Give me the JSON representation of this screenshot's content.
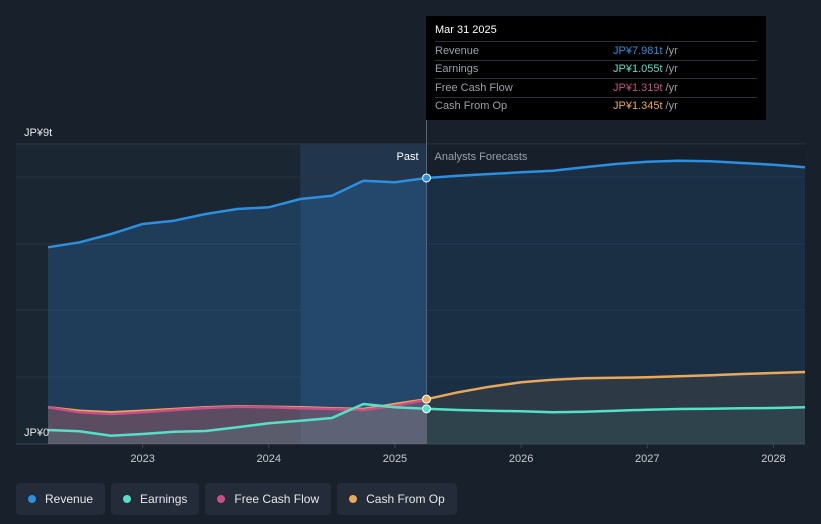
{
  "chart_data": {
    "type": "area",
    "y_top_label": "JP¥9t",
    "y_bottom_label": "JP¥0",
    "ylim": [
      0,
      9
    ],
    "xlim": [
      2022.25,
      2028.25
    ],
    "x_ticks": [
      "2023",
      "2024",
      "2025",
      "2026",
      "2027",
      "2028"
    ],
    "x_tick_values": [
      2023,
      2024,
      2025,
      2026,
      2027,
      2028
    ],
    "past_label": "Past",
    "forecast_label": "Analysts Forecasts",
    "divider_x": 2025.25,
    "highlight_start": 2024.25,
    "series": [
      {
        "name": "Revenue",
        "color": "#2c8fe0",
        "x": [
          2022.25,
          2022.5,
          2022.75,
          2023.0,
          2023.25,
          2023.5,
          2023.75,
          2024.0,
          2024.25,
          2024.5,
          2024.75,
          2025.0,
          2025.25,
          2025.5,
          2025.75,
          2026.0,
          2026.25,
          2026.5,
          2026.75,
          2027.0,
          2027.25,
          2027.5,
          2027.75,
          2028.0,
          2028.25
        ],
        "y": [
          5.9,
          6.05,
          6.3,
          6.6,
          6.7,
          6.9,
          7.05,
          7.1,
          7.35,
          7.45,
          7.9,
          7.85,
          7.981,
          8.05,
          8.1,
          8.15,
          8.2,
          8.3,
          8.4,
          8.47,
          8.5,
          8.48,
          8.43,
          8.38,
          8.3
        ]
      },
      {
        "name": "Earnings",
        "color": "#55e0c8",
        "x": [
          2022.25,
          2022.5,
          2022.75,
          2023.0,
          2023.25,
          2023.5,
          2023.75,
          2024.0,
          2024.25,
          2024.5,
          2024.6,
          2024.75,
          2025.0,
          2025.25,
          2025.5,
          2025.75,
          2026.0,
          2026.25,
          2026.5,
          2026.75,
          2027.0,
          2027.25,
          2027.5,
          2027.75,
          2028.0,
          2028.25
        ],
        "y": [
          0.42,
          0.38,
          0.25,
          0.3,
          0.37,
          0.39,
          0.5,
          0.62,
          0.7,
          0.78,
          0.95,
          1.2,
          1.1,
          1.055,
          1.02,
          1.0,
          0.98,
          0.95,
          0.97,
          1.0,
          1.03,
          1.05,
          1.06,
          1.07,
          1.08,
          1.1
        ]
      },
      {
        "name": "Free Cash Flow",
        "color": "#c94f86",
        "x": [
          2022.25,
          2022.5,
          2022.75,
          2023.0,
          2023.25,
          2023.5,
          2023.75,
          2024.0,
          2024.25,
          2024.5,
          2024.75,
          2025.0,
          2025.25
        ],
        "y": [
          1.1,
          0.95,
          0.9,
          0.95,
          1.02,
          1.08,
          1.12,
          1.1,
          1.07,
          1.05,
          1.02,
          1.15,
          1.319
        ]
      },
      {
        "name": "Cash From Op",
        "color": "#e8a95b",
        "x": [
          2022.25,
          2022.5,
          2022.75,
          2023.0,
          2023.25,
          2023.5,
          2023.75,
          2024.0,
          2024.25,
          2024.5,
          2024.75,
          2025.0,
          2025.25,
          2025.5,
          2025.75,
          2026.0,
          2026.25,
          2026.5,
          2026.75,
          2027.0,
          2027.25,
          2027.5,
          2027.75,
          2028.0,
          2028.25
        ],
        "y": [
          1.1,
          1.0,
          0.95,
          1.0,
          1.05,
          1.1,
          1.13,
          1.12,
          1.1,
          1.07,
          1.05,
          1.2,
          1.345,
          1.55,
          1.72,
          1.85,
          1.93,
          1.97,
          1.99,
          2.0,
          2.03,
          2.06,
          2.1,
          2.13,
          2.16
        ]
      }
    ]
  },
  "tooltip": {
    "date": "Mar 31 2025",
    "rows": [
      {
        "label": "Revenue",
        "value": "JP¥7.981t",
        "unit": "/yr",
        "color": "#2c8fe0"
      },
      {
        "label": "Earnings",
        "value": "JP¥1.055t",
        "unit": "/yr",
        "color": "#55e0c8"
      },
      {
        "label": "Free Cash Flow",
        "value": "JP¥1.319t",
        "unit": "/yr",
        "color": "#c94f86"
      },
      {
        "label": "Cash From Op",
        "value": "JP¥1.345t",
        "unit": "/yr",
        "color": "#e8a95b"
      }
    ]
  },
  "legend": [
    {
      "label": "Revenue",
      "color": "#2c8fe0"
    },
    {
      "label": "Earnings",
      "color": "#55e0c8"
    },
    {
      "label": "Free Cash Flow",
      "color": "#c94f86"
    },
    {
      "label": "Cash From Op",
      "color": "#e8a95b"
    }
  ]
}
